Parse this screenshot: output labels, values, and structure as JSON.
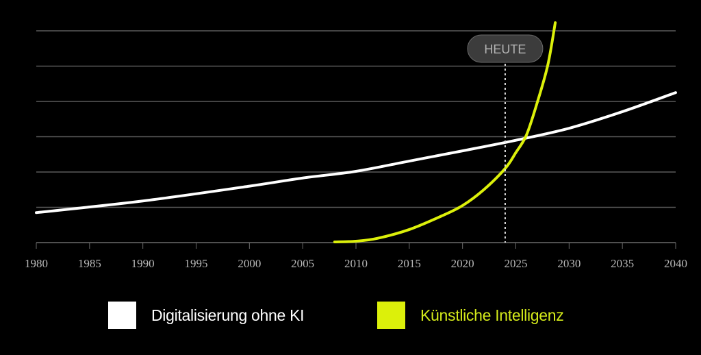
{
  "chart_data": {
    "type": "line",
    "title": "",
    "xlabel": "",
    "ylabel": "",
    "xlim": [
      1980,
      2040
    ],
    "ylim": [
      0,
      6
    ],
    "x_ticks": [
      "1980",
      "1985",
      "1990",
      "1995",
      "2000",
      "2005",
      "2010",
      "2015",
      "2020",
      "2025",
      "2030",
      "2035",
      "2040"
    ],
    "grid": true,
    "annotation": {
      "label": "HEUTE",
      "x": 2024
    },
    "legend_position": "bottom",
    "series": [
      {
        "name": "Digitalisierung ohne KI",
        "color": "#ffffff",
        "x": [
          1980,
          1990,
          2000,
          2005,
          2010,
          2015,
          2020,
          2025,
          2030,
          2035,
          2040
        ],
        "y": [
          0.85,
          1.18,
          1.6,
          1.83,
          2.02,
          2.31,
          2.6,
          2.9,
          3.24,
          3.71,
          4.25
        ]
      },
      {
        "name": "Künstliche Intelligenz",
        "color": "#dcf00a",
        "x": [
          2008,
          2010,
          2012,
          2015,
          2018,
          2020,
          2022,
          2024,
          2025,
          2026,
          2027,
          2028,
          2028.7
        ],
        "y": [
          0.02,
          0.04,
          0.12,
          0.37,
          0.75,
          1.05,
          1.5,
          2.1,
          2.55,
          3.05,
          3.96,
          5.03,
          6.23
        ]
      }
    ]
  }
}
